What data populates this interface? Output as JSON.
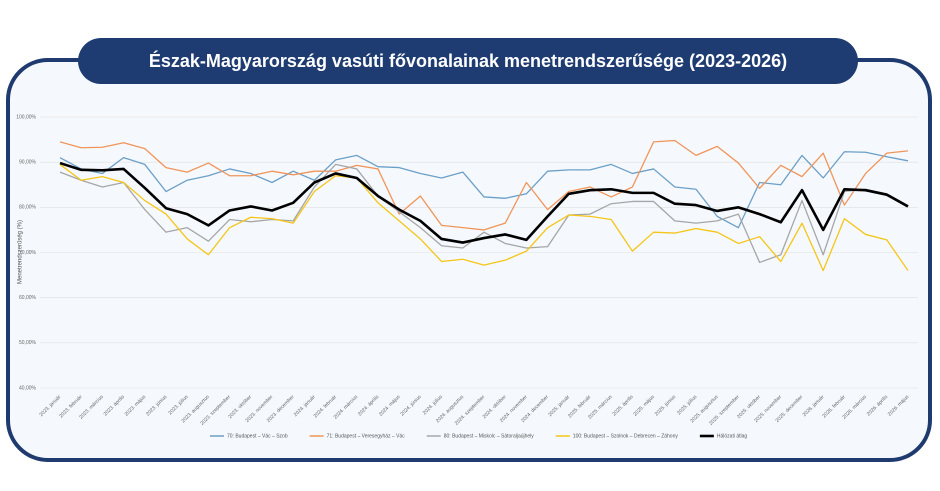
{
  "chart_data": {
    "type": "line",
    "title": "Észak-Magyarország vasúti fővonalainak menetrendszerűsége (2023-2026)",
    "y_label": "Menetrendszerűség (%)",
    "categories": [
      "2023. január",
      "2023. február",
      "2023. március",
      "2023. április",
      "2023. május",
      "2023. június",
      "2023. július",
      "2023. augusztus",
      "2023. szeptember",
      "2023. október",
      "2023. november",
      "2023. december",
      "2024. január",
      "2024. február",
      "2024. március",
      "2024. április",
      "2024. május",
      "2024. június",
      "2024. július",
      "2024. augusztus",
      "2024. szeptember",
      "2024. október",
      "2024. november",
      "2024. december",
      "2025. január",
      "2025. február",
      "2025. március",
      "2025. április",
      "2025. május",
      "2025. június",
      "2025. július",
      "2025. augusztus",
      "2025. szeptember",
      "2025. október",
      "2025. november",
      "2025. december",
      "2026. január",
      "2026. február",
      "2026. március",
      "2026. április",
      "2026. május"
    ],
    "ylim": [
      40,
      100
    ],
    "yticks": [
      {
        "value": 40,
        "label": "40,00%"
      },
      {
        "value": 50,
        "label": "50,00%"
      },
      {
        "value": 60,
        "label": "60,00%"
      },
      {
        "value": 70,
        "label": "70,00%"
      },
      {
        "value": 80,
        "label": "80,00%"
      },
      {
        "value": 90,
        "label": "90,00%"
      },
      {
        "value": 100,
        "label": "100,00%"
      }
    ],
    "grid": true,
    "legend": "bottom",
    "series": [
      {
        "name": "70: Budapest – Vác – Szob",
        "color": "#6b9fc7",
        "values": [
          91,
          88.5,
          87.5,
          91,
          89.5,
          83.5,
          86,
          87,
          88.5,
          87.5,
          85.5,
          88,
          86,
          90.5,
          91.5,
          89,
          88.8,
          87.5,
          86.5,
          87.8,
          82.3,
          82,
          83,
          88,
          88.3,
          88.3,
          89.5,
          87.5,
          88.5,
          84.5,
          84,
          78,
          75.5,
          85.5,
          85,
          91.5,
          86.5,
          92.3,
          92.2,
          91.2,
          90.3
        ]
      },
      {
        "name": "71: Budapest – Veresegyház – Vác",
        "color": "#f0955a",
        "values": [
          94.5,
          93.2,
          93.3,
          94.3,
          93,
          88.8,
          87.8,
          89.8,
          87,
          87,
          88,
          87.2,
          88,
          88,
          89.3,
          88.5,
          78.5,
          82.5,
          76,
          75.5,
          75,
          76.5,
          85.5,
          79.5,
          83.5,
          84.5,
          82.3,
          84.5,
          94.5,
          94.8,
          91.5,
          93.5,
          89.8,
          84.2,
          89.3,
          86.8,
          92,
          80.5,
          87.5,
          92,
          92.5
        ]
      },
      {
        "name": "80: Budapest – Miskolc – Sátoraljaújhely",
        "color": "#a6a6a6",
        "values": [
          87.8,
          86,
          84.5,
          85.5,
          79.5,
          74.5,
          75.5,
          72.5,
          77.3,
          76.8,
          77.3,
          77,
          84.5,
          89.5,
          88.5,
          82.5,
          79,
          75.5,
          71.5,
          71,
          74.5,
          72,
          71,
          71.3,
          78.3,
          78.5,
          80.8,
          81.3,
          81.3,
          77,
          76.5,
          77,
          78.5,
          67.8,
          69.5,
          81.5,
          69.5,
          83.5,
          84,
          83,
          80.3
        ]
      },
      {
        "name": "100: Budapest – Szolnok – Debrecen – Záhony",
        "color": "#f5c518",
        "values": [
          89.5,
          86,
          86.8,
          85.5,
          81.5,
          78.5,
          73,
          69.5,
          75.5,
          77.8,
          77.5,
          76.5,
          83.5,
          87,
          86.5,
          81,
          77,
          73,
          68,
          68.5,
          67.2,
          68.3,
          70.3,
          75.5,
          78.3,
          78,
          77.3,
          70.3,
          74.5,
          74.3,
          75.3,
          74.5,
          72,
          73.5,
          68,
          76.5,
          66,
          77.5,
          74,
          72.8,
          66
        ]
      },
      {
        "name": "Hálózati átlag",
        "color": "#000000",
        "values": [
          89.8,
          88.3,
          88.2,
          88.5,
          84.3,
          79.8,
          78.5,
          76,
          79.3,
          80.2,
          79.3,
          81,
          85.5,
          87.5,
          86.5,
          82.5,
          79.5,
          77,
          73,
          72.2,
          73.2,
          74,
          72.8,
          78,
          83,
          83.8,
          84,
          83.2,
          83.2,
          80.8,
          80.5,
          79.2,
          80,
          78.5,
          76.7,
          83.8,
          75,
          84,
          83.8,
          82.8,
          80.2
        ]
      }
    ]
  }
}
